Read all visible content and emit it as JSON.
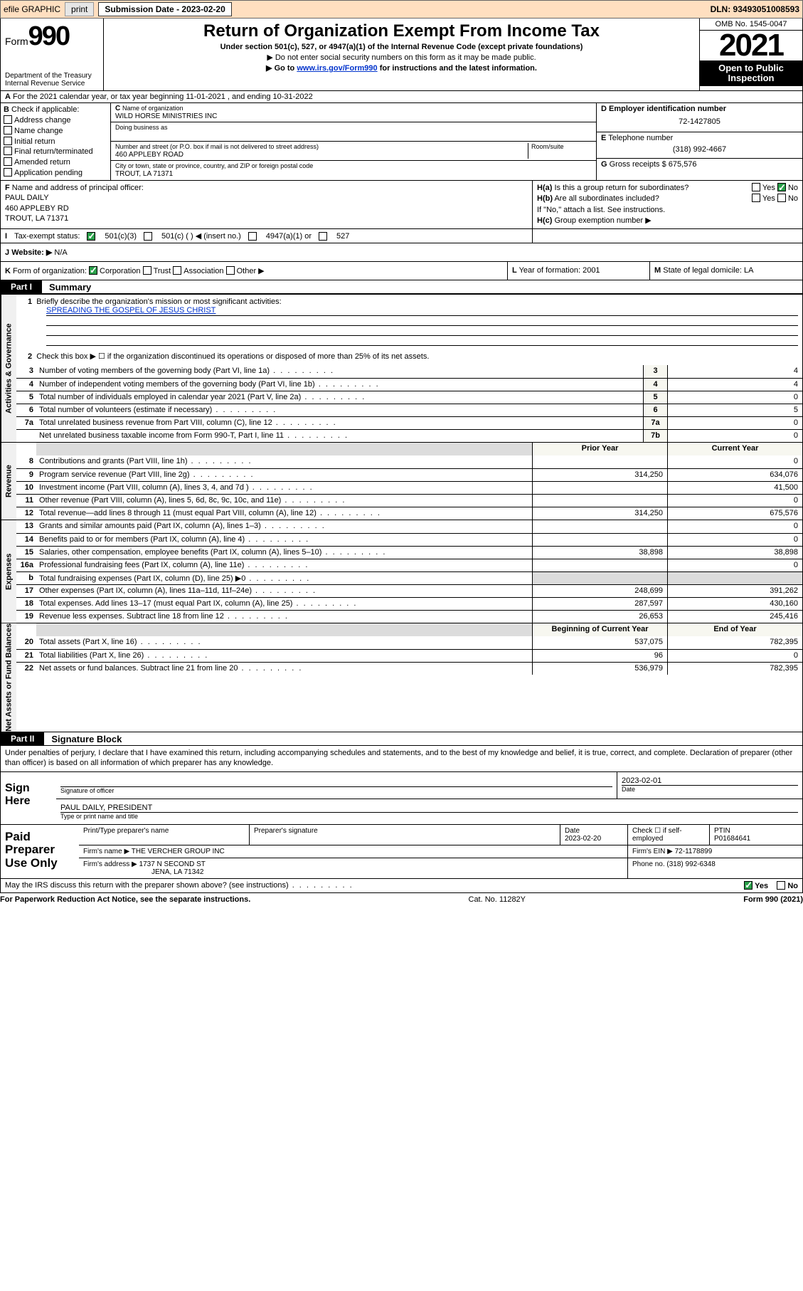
{
  "top": {
    "efile": "efile GRAPHIC",
    "print": "print",
    "sub_label": "Submission Date - 2023-02-20",
    "dln": "DLN: 93493051008593"
  },
  "header": {
    "form_word": "Form",
    "form_num": "990",
    "dept": "Department of the Treasury",
    "irs": "Internal Revenue Service",
    "title": "Return of Organization Exempt From Income Tax",
    "sub": "Under section 501(c), 527, or 4947(a)(1) of the Internal Revenue Code (except private foundations)",
    "hint1": "▶ Do not enter social security numbers on this form as it may be made public.",
    "hint2_a": "▶ Go to ",
    "hint2_link": "www.irs.gov/Form990",
    "hint2_b": " for instructions and the latest information.",
    "omb": "OMB No. 1545-0047",
    "year": "2021",
    "open": "Open to Public Inspection"
  },
  "rowA": "For the 2021 calendar year, or tax year beginning 11-01-2021   , and ending 10-31-2022",
  "B": {
    "title": "Check if applicable:",
    "items": [
      "Address change",
      "Name change",
      "Initial return",
      "Final return/terminated",
      "Amended return",
      "Application pending"
    ]
  },
  "C": {
    "name_lbl": "Name of organization",
    "name": "WILD HORSE MINISTRIES INC",
    "dba_lbl": "Doing business as",
    "addr_lbl": "Number and street (or P.O. box if mail is not delivered to street address)",
    "room_lbl": "Room/suite",
    "addr": "460 APPLEBY ROAD",
    "city_lbl": "City or town, state or province, country, and ZIP or foreign postal code",
    "city": "TROUT, LA  71371"
  },
  "D": {
    "lbl": "Employer identification number",
    "val": "72-1427805"
  },
  "E": {
    "lbl": "Telephone number",
    "val": "(318) 992-4667"
  },
  "G": {
    "lbl": "Gross receipts $",
    "val": "675,576"
  },
  "F": {
    "lbl": "Name and address of principal officer:",
    "name": "PAUL DAILY",
    "addr": "460 APPLEBY RD",
    "city": "TROUT, LA  71371"
  },
  "H": {
    "a": "Is this a group return for subordinates?",
    "b": "Are all subordinates included?",
    "attach": "If \"No,\" attach a list. See instructions.",
    "c": "Group exemption number ▶"
  },
  "I": {
    "lbl": "Tax-exempt status:",
    "opts": [
      "501(c)(3)",
      "501(c) (  ) ◀ (insert no.)",
      "4947(a)(1) or",
      "527"
    ]
  },
  "J": {
    "lbl": "Website: ▶",
    "val": "N/A"
  },
  "K": {
    "lbl": "Form of organization:",
    "opts": [
      "Corporation",
      "Trust",
      "Association",
      "Other ▶"
    ]
  },
  "L": {
    "lbl": "Year of formation:",
    "val": "2001"
  },
  "M": {
    "lbl": "State of legal domicile:",
    "val": "LA"
  },
  "part1": {
    "tab": "Part I",
    "title": "Summary",
    "q1": "Briefly describe the organization's mission or most significant activities:",
    "mission": "SPREADING THE GOSPEL OF JESUS CHRIST",
    "q2": "Check this box ▶ ☐  if the organization discontinued its operations or disposed of more than 25% of its net assets.",
    "sections": {
      "gov": "Activities & Governance",
      "rev": "Revenue",
      "exp": "Expenses",
      "net": "Net Assets or Fund Balances"
    },
    "cols": {
      "prior": "Prior Year",
      "curr": "Current Year",
      "beg": "Beginning of Current Year",
      "end": "End of Year"
    },
    "rows_gov": [
      {
        "n": "3",
        "t": "Number of voting members of the governing body (Part VI, line 1a)",
        "k": "3",
        "v": "4"
      },
      {
        "n": "4",
        "t": "Number of independent voting members of the governing body (Part VI, line 1b)",
        "k": "4",
        "v": "4"
      },
      {
        "n": "5",
        "t": "Total number of individuals employed in calendar year 2021 (Part V, line 2a)",
        "k": "5",
        "v": "0"
      },
      {
        "n": "6",
        "t": "Total number of volunteers (estimate if necessary)",
        "k": "6",
        "v": "5"
      },
      {
        "n": "7a",
        "t": "Total unrelated business revenue from Part VIII, column (C), line 12",
        "k": "7a",
        "v": "0"
      },
      {
        "n": "",
        "t": "Net unrelated business taxable income from Form 990-T, Part I, line 11",
        "k": "7b",
        "v": "0"
      }
    ],
    "rows_rev": [
      {
        "n": "8",
        "t": "Contributions and grants (Part VIII, line 1h)",
        "p": "",
        "c": "0"
      },
      {
        "n": "9",
        "t": "Program service revenue (Part VIII, line 2g)",
        "p": "314,250",
        "c": "634,076"
      },
      {
        "n": "10",
        "t": "Investment income (Part VIII, column (A), lines 3, 4, and 7d )",
        "p": "",
        "c": "41,500"
      },
      {
        "n": "11",
        "t": "Other revenue (Part VIII, column (A), lines 5, 6d, 8c, 9c, 10c, and 11e)",
        "p": "",
        "c": "0"
      },
      {
        "n": "12",
        "t": "Total revenue—add lines 8 through 11 (must equal Part VIII, column (A), line 12)",
        "p": "314,250",
        "c": "675,576"
      }
    ],
    "rows_exp": [
      {
        "n": "13",
        "t": "Grants and similar amounts paid (Part IX, column (A), lines 1–3)",
        "p": "",
        "c": "0"
      },
      {
        "n": "14",
        "t": "Benefits paid to or for members (Part IX, column (A), line 4)",
        "p": "",
        "c": "0"
      },
      {
        "n": "15",
        "t": "Salaries, other compensation, employee benefits (Part IX, column (A), lines 5–10)",
        "p": "38,898",
        "c": "38,898"
      },
      {
        "n": "16a",
        "t": "Professional fundraising fees (Part IX, column (A), line 11e)",
        "p": "",
        "c": "0"
      },
      {
        "n": "b",
        "t": "Total fundraising expenses (Part IX, column (D), line 25) ▶0",
        "p": "SHADE",
        "c": "SHADE"
      },
      {
        "n": "17",
        "t": "Other expenses (Part IX, column (A), lines 11a–11d, 11f–24e)",
        "p": "248,699",
        "c": "391,262"
      },
      {
        "n": "18",
        "t": "Total expenses. Add lines 13–17 (must equal Part IX, column (A), line 25)",
        "p": "287,597",
        "c": "430,160"
      },
      {
        "n": "19",
        "t": "Revenue less expenses. Subtract line 18 from line 12",
        "p": "26,653",
        "c": "245,416"
      }
    ],
    "rows_net": [
      {
        "n": "20",
        "t": "Total assets (Part X, line 16)",
        "p": "537,075",
        "c": "782,395"
      },
      {
        "n": "21",
        "t": "Total liabilities (Part X, line 26)",
        "p": "96",
        "c": "0"
      },
      {
        "n": "22",
        "t": "Net assets or fund balances. Subtract line 21 from line 20",
        "p": "536,979",
        "c": "782,395"
      }
    ]
  },
  "part2": {
    "tab": "Part II",
    "title": "Signature Block",
    "stmt": "Under penalties of perjury, I declare that I have examined this return, including accompanying schedules and statements, and to the best of my knowledge and belief, it is true, correct, and complete. Declaration of preparer (other than officer) is based on all information of which preparer has any knowledge.",
    "sign_here": "Sign Here",
    "sig_officer": "Signature of officer",
    "sig_date_lbl": "Date",
    "sig_date": "2023-02-01",
    "name_title_lbl": "Type or print name and title",
    "name_title": "PAUL DAILY, PRESIDENT",
    "paid": "Paid Preparer Use Only",
    "prep_hdrs": [
      "Print/Type preparer's name",
      "Preparer's signature",
      "Date",
      "Check ☐ if self-employed",
      "PTIN"
    ],
    "prep_date": "2023-02-20",
    "ptin": "P01684641",
    "firm_name_lbl": "Firm's name    ▶",
    "firm_name": "THE VERCHER GROUP INC",
    "firm_ein_lbl": "Firm's EIN ▶",
    "firm_ein": "72-1178899",
    "firm_addr_lbl": "Firm's address ▶",
    "firm_addr1": "1737 N SECOND ST",
    "firm_addr2": "JENA, LA  71342",
    "phone_lbl": "Phone no.",
    "phone": "(318) 992-6348",
    "may": "May the IRS discuss this return with the preparer shown above? (see instructions)",
    "yes": "Yes",
    "no": "No"
  },
  "foot": {
    "pra": "For Paperwork Reduction Act Notice, see the separate instructions.",
    "cat": "Cat. No. 11282Y",
    "form": "Form 990 (2021)"
  },
  "yesno": {
    "yes": "Yes",
    "no": "No"
  },
  "labels": {
    "b": "B",
    "c": "C",
    "d": "D",
    "e": "E",
    "f": "F",
    "g": "G",
    "ha": "H(a)",
    "hb": "H(b)",
    "hc": "H(c)",
    "i": "I",
    "j": "J",
    "k": "K",
    "l": "L",
    "m": "M",
    "a": "A",
    "one": "1",
    "two": "2"
  }
}
